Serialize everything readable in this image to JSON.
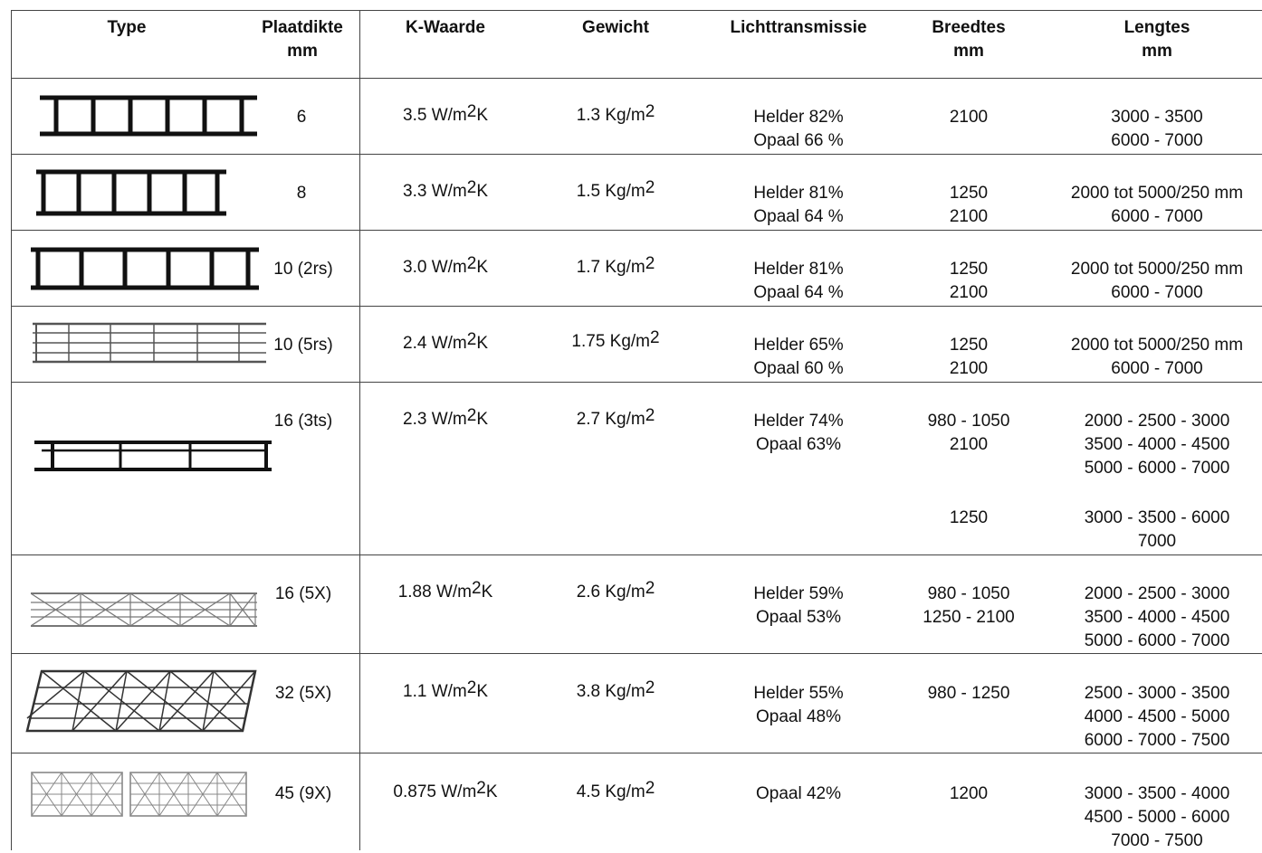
{
  "headers": {
    "type": "Type",
    "thickness": [
      "Plaatdikte",
      "mm"
    ],
    "k_value": "K-Waarde",
    "weight": "Gewicht",
    "light": "Lichttransmissie",
    "widths": [
      "Breedtes",
      "mm"
    ],
    "lengths": [
      "Lengtes",
      "mm"
    ]
  },
  "rows": [
    {
      "icon": "twin-wall-profile-icon",
      "thickness": "6",
      "k_value": "3.5 W/m",
      "k_sup": "2",
      "k_unit": "K",
      "weight": "1.3 Kg/m",
      "w_sup": "2",
      "light": [
        "Helder 82%",
        "Opaal 66 %"
      ],
      "widths": [
        "2100"
      ],
      "lengths": [
        "3000 - 3500",
        "6000 - 7000"
      ]
    },
    {
      "icon": "twin-wall-profile-icon",
      "thickness": "8",
      "k_value": "3.3 W/m",
      "k_sup": "2",
      "k_unit": "K",
      "weight": "1.5 Kg/m",
      "w_sup": "2",
      "light": [
        "Helder 81%",
        "Opaal 64 %"
      ],
      "widths": [
        "1250",
        "2100"
      ],
      "lengths": [
        "2000 tot 5000/250 mm",
        "6000 - 7000"
      ]
    },
    {
      "icon": "twin-wall-profile-icon",
      "thickness": "10 (2rs)",
      "k_value": "3.0 W/m",
      "k_sup": "2",
      "k_unit": "K",
      "weight": "1.7 Kg/m",
      "w_sup": "2",
      "light": [
        "Helder 81%",
        "Opaal 64 %"
      ],
      "widths": [
        "1250",
        "2100"
      ],
      "lengths": [
        "2000 tot 5000/250 mm",
        "6000 - 7000"
      ]
    },
    {
      "icon": "multi-wall-5rs-profile-icon",
      "thickness": "10 (5rs)",
      "k_value": "2.4 W/m",
      "k_sup": "2",
      "k_unit": "K",
      "weight": "1.75 Kg/m",
      "w_sup": "2",
      "light": [
        "Helder 65%",
        "Opaal 60 %"
      ],
      "widths": [
        "1250",
        "2100"
      ],
      "lengths": [
        "2000 tot 5000/250 mm",
        "6000 - 7000"
      ]
    },
    {
      "icon": "triple-wall-profile-icon",
      "thickness": "16 (3ts)",
      "k_value": "2.3 W/m",
      "k_sup": "2",
      "k_unit": "K",
      "weight": "2.7 Kg/m",
      "w_sup": "2",
      "light": [
        "Helder 74%",
        "Opaal 63%"
      ],
      "widths": [
        "980 - 1050",
        "2100"
      ],
      "lengths": [
        "2000 - 2500 - 3000",
        "3500 - 4000 - 4500",
        "5000 - 6000 - 7000"
      ],
      "widths_extra": [
        "1250"
      ],
      "lengths_extra": [
        "3000 - 3500 - 6000",
        "7000"
      ]
    },
    {
      "icon": "x-structure-16-profile-icon",
      "thickness": "16 (5X)",
      "k_value": "1.88 W/m",
      "k_sup": "2",
      "k_unit": "K",
      "weight": "2.6 Kg/m",
      "w_sup": "2",
      "light": [
        "Helder 59%",
        "Opaal 53%"
      ],
      "widths": [
        "980 - 1050",
        "1250 - 2100"
      ],
      "lengths": [
        "2000 - 2500 - 3000",
        "3500 - 4000 - 4500",
        "5000 - 6000 - 7000"
      ]
    },
    {
      "icon": "x-structure-32-profile-icon",
      "thickness": "32 (5X)",
      "k_value": "1.1 W/m",
      "k_sup": "2",
      "k_unit": "K",
      "weight": "3.8 Kg/m",
      "w_sup": "2",
      "light": [
        "Helder 55%",
        "Opaal 48%"
      ],
      "widths": [
        "980 - 1250"
      ],
      "lengths": [
        "2500 - 3000 - 3500",
        "4000 - 4500 - 5000",
        "6000 - 7000 - 7500"
      ]
    },
    {
      "icon": "x-structure-45-profile-icon",
      "thickness": "45 (9X)",
      "k_value": "0.875 W/m",
      "k_sup": "2",
      "k_unit": "K",
      "weight": "4.5 Kg/m",
      "w_sup": "2",
      "light": [
        "Opaal 42%"
      ],
      "widths": [
        "1200"
      ],
      "lengths": [
        "3000 - 3500 - 4000",
        "4500 - 5000 - 6000",
        "7000 - 7500"
      ]
    }
  ]
}
